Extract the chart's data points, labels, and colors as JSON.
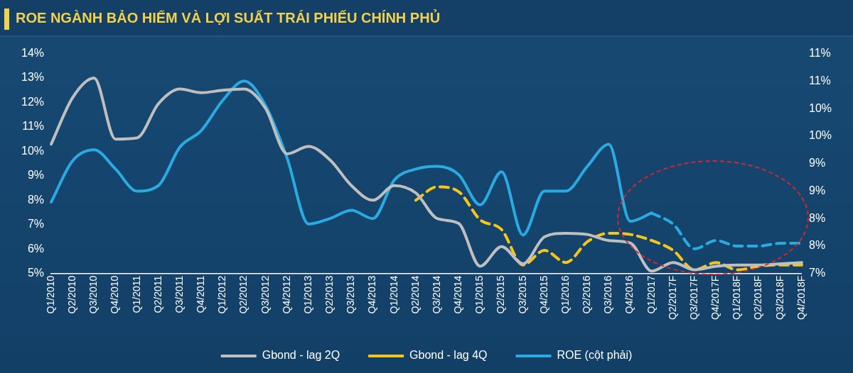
{
  "chart_data": {
    "type": "line",
    "title": "ROE NGÀNH BẢO HIỂM VÀ LỢI SUẤT TRÁI PHIẾU CHÍNH PHỦ",
    "categories": [
      "Q1/2010",
      "Q2/2010",
      "Q3/2010",
      "Q4/2010",
      "Q1/2011",
      "Q2/2011",
      "Q3/2011",
      "Q4/2011",
      "Q1/2012",
      "Q2/2012",
      "Q3/2012",
      "Q4/2012",
      "Q1/2013",
      "Q2/2013",
      "Q3/2013",
      "Q4/2013",
      "Q1/2014",
      "Q2/2014",
      "Q3/2014",
      "Q4/2014",
      "Q1/2015",
      "Q2/2015",
      "Q3/2015",
      "Q4/2015",
      "Q1/2016",
      "Q2/2016",
      "Q3/2016",
      "Q4/2016",
      "Q1/2017",
      "Q2/2017F",
      "Q3/2017F",
      "Q4/2017F",
      "Q1/2018F",
      "Q2/2018F",
      "Q3/2018F",
      "Q4/2018F"
    ],
    "series": [
      {
        "name": "Gbond - lag 2Q",
        "color": "#bfbfbf",
        "line_style": "solid",
        "values": [
          10.3,
          12.2,
          13.0,
          10.5,
          10.55,
          11.95,
          12.55,
          12.4,
          12.5,
          12.55,
          11.75,
          9.9,
          10.2,
          9.65,
          8.6,
          8.0,
          8.6,
          8.3,
          7.25,
          7.05,
          5.3,
          6.1,
          5.4,
          6.5,
          6.65,
          6.6,
          6.35,
          6.25,
          5.1,
          5.45,
          5.15,
          5.3,
          5.35,
          5.35,
          5.4,
          5.45
        ]
      },
      {
        "name": "Gbond - lag 4Q",
        "color": "#f5c518",
        "line_style": "dashed",
        "values": [
          null,
          null,
          null,
          null,
          null,
          null,
          null,
          null,
          null,
          null,
          null,
          null,
          null,
          null,
          null,
          null,
          null,
          8.0,
          8.55,
          8.35,
          7.2,
          6.8,
          5.35,
          5.95,
          5.45,
          6.3,
          6.65,
          6.6,
          6.35,
          5.95,
          5.15,
          5.45,
          5.15,
          5.3,
          5.35,
          5.35
        ]
      },
      {
        "name": "ROE (cột phải)",
        "color": "#29abe2",
        "line_style": "solid",
        "axis": "y2",
        "values": [
          8.3,
          9.05,
          9.25,
          8.9,
          8.5,
          8.6,
          9.3,
          9.6,
          10.15,
          10.5,
          10.05,
          9.1,
          7.9,
          8.0,
          8.15,
          8.0,
          8.7,
          8.9,
          8.95,
          8.8,
          8.25,
          8.85,
          7.7,
          8.5,
          8.5,
          8.95,
          9.35,
          7.95,
          8.1,
          null,
          null,
          null,
          null,
          null,
          null,
          null
        ]
      },
      {
        "color": "#29abe2",
        "line_style": "dashed",
        "axis": "y2",
        "values": [
          null,
          null,
          null,
          null,
          null,
          null,
          null,
          null,
          null,
          null,
          null,
          null,
          null,
          null,
          null,
          null,
          null,
          null,
          null,
          null,
          null,
          null,
          null,
          null,
          null,
          null,
          null,
          null,
          8.1,
          7.9,
          7.45,
          7.6,
          7.5,
          7.5,
          7.55,
          7.55
        ]
      }
    ],
    "ylim": [
      5,
      14
    ],
    "yticks": [
      {
        "value": 5,
        "label": "5%"
      },
      {
        "value": 6,
        "label": "6%"
      },
      {
        "value": 7,
        "label": "7%"
      },
      {
        "value": 8,
        "label": "8%"
      },
      {
        "value": 9,
        "label": "9%"
      },
      {
        "value": 10,
        "label": "10%"
      },
      {
        "value": 11,
        "label": "11%"
      },
      {
        "value": 12,
        "label": "12%"
      },
      {
        "value": 13,
        "label": "13%"
      },
      {
        "value": 14,
        "label": "14%"
      }
    ],
    "y2lim": [
      7,
      11
    ],
    "y2ticks": [
      {
        "value": 7,
        "label": "7%"
      },
      {
        "value": 7.5,
        "label": "8%"
      },
      {
        "value": 8,
        "label": "8%"
      },
      {
        "value": 8.5,
        "label": "9%"
      },
      {
        "value": 9,
        "label": "9%"
      },
      {
        "value": 9.5,
        "label": "10%"
      },
      {
        "value": 10,
        "label": "10%"
      },
      {
        "value": 10.5,
        "label": "11%"
      },
      {
        "value": 11,
        "label": "11%"
      }
    ],
    "grid": false,
    "legend": "bottom",
    "marker": "none"
  }
}
